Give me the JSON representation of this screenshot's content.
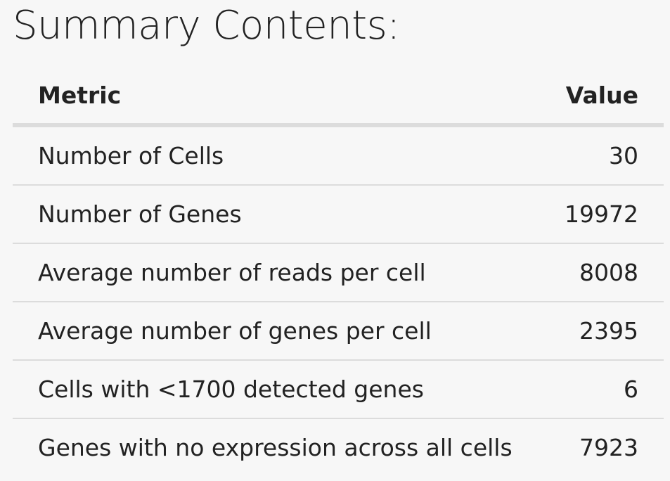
{
  "page": {
    "title": "Summary Contents:"
  },
  "table": {
    "headers": {
      "metric": "Metric",
      "value": "Value"
    },
    "rows": [
      {
        "metric": "Number of Cells",
        "value": "30"
      },
      {
        "metric": "Number of Genes",
        "value": "19972"
      },
      {
        "metric": "Average number of reads per cell",
        "value": "8008"
      },
      {
        "metric": "Average number of genes per cell",
        "value": "2395"
      },
      {
        "metric": "Cells with <1700 detected genes",
        "value": "6"
      },
      {
        "metric": "Genes with no expression across all cells",
        "value": "7923"
      }
    ]
  },
  "colors": {
    "background": "#f7f7f7",
    "text": "#222222",
    "divider": "#dcdcdc"
  }
}
